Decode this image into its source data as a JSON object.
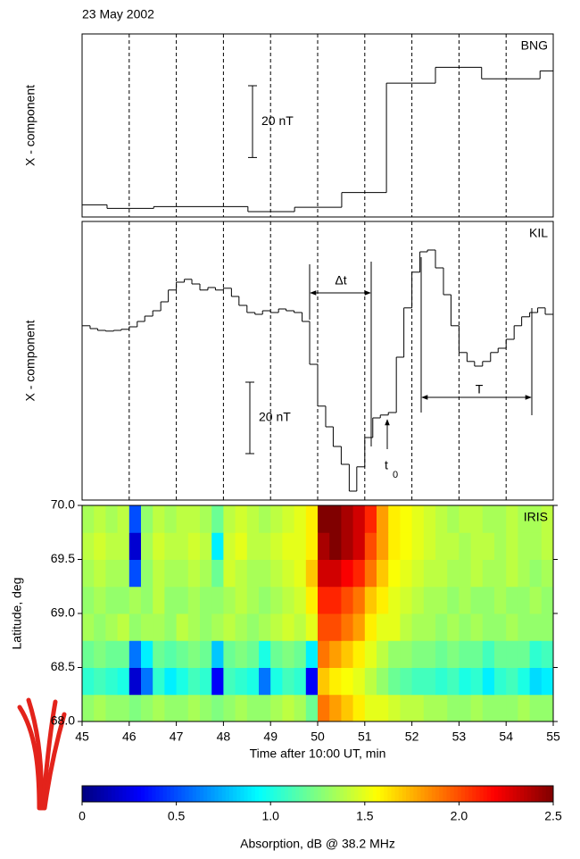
{
  "chart_data": [
    {
      "type": "step",
      "title": "23 May 2002",
      "label": "BNG",
      "ylabel": "X - component",
      "x": [
        45,
        45.53,
        46.52,
        48.52,
        49.51,
        50.51,
        51.46,
        52.5,
        53.48,
        54.72
      ],
      "values": [
        3.4,
        2.4,
        2.9,
        1.5,
        2.7,
        6.8,
        37.3,
        41.7,
        38.5,
        40.7
      ],
      "color": "#000000",
      "xlim": [
        45,
        55
      ],
      "ylim": [
        0,
        51
      ],
      "xticks": [
        45,
        46,
        47,
        48,
        49,
        50,
        51,
        52,
        53,
        54,
        55
      ],
      "grid": true,
      "scale_bar": {
        "value": 20,
        "label": "20 nT"
      }
    },
    {
      "type": "step",
      "label": "KIL",
      "ylabel": "X - component",
      "x": [
        45,
        45.17,
        45.33,
        45.5,
        45.67,
        45.83,
        46,
        46.17,
        46.33,
        46.5,
        46.67,
        46.83,
        47,
        47.17,
        47.33,
        47.5,
        47.67,
        47.83,
        48,
        48.17,
        48.33,
        48.5,
        48.67,
        48.83,
        49,
        49.17,
        49.33,
        49.5,
        49.67,
        49.83,
        50,
        50.17,
        50.33,
        50.5,
        50.67,
        50.83,
        51,
        51.17,
        51.33,
        51.5,
        51.67,
        51.83,
        52,
        52.17,
        52.33,
        52.5,
        52.67,
        52.83,
        53,
        53.17,
        53.33,
        53.5,
        53.67,
        53.83,
        54,
        54.17,
        54.33,
        54.5,
        54.67,
        54.83
      ],
      "values": [
        48.8,
        48,
        47.5,
        47.3,
        47.5,
        47.8,
        48.5,
        50,
        51.5,
        53,
        55.5,
        58.8,
        61,
        61.8,
        60.5,
        58.8,
        59.5,
        58.8,
        59.3,
        57,
        54.5,
        52.5,
        52,
        53,
        52.5,
        53.5,
        53,
        52.5,
        50,
        38,
        26.3,
        20.5,
        15,
        10,
        2.5,
        9.3,
        17.5,
        23,
        23.8,
        24.5,
        40,
        53.8,
        63.8,
        69.5,
        70,
        65,
        57.5,
        48.8,
        41.3,
        38.8,
        37.5,
        38.8,
        41.3,
        42.5,
        45,
        48.8,
        51.3,
        52.5,
        53.8,
        52
      ],
      "color": "#000000",
      "xlim": [
        45,
        55
      ],
      "ylim": [
        0,
        78
      ],
      "xticks": [
        45,
        46,
        47,
        48,
        49,
        50,
        51,
        52,
        53,
        54,
        55
      ],
      "grid": true,
      "scale_bar": {
        "value": 20,
        "label": "20 nT"
      },
      "annotations": [
        {
          "text": "Δt"
        },
        {
          "text": "T"
        },
        {
          "text": "t",
          "subscript": "0"
        }
      ]
    },
    {
      "type": "heatmap",
      "label": "IRIS",
      "ylabel": "Latitude, deg",
      "xlabel": "Time after 10:00 UT, min",
      "xbins": [
        45,
        45.25,
        45.5,
        45.75,
        46,
        46.25,
        46.5,
        46.75,
        47,
        47.25,
        47.5,
        47.75,
        48,
        48.25,
        48.5,
        48.75,
        49,
        49.25,
        49.5,
        49.75,
        50,
        50.25,
        50.5,
        50.75,
        51,
        51.25,
        51.5,
        51.75,
        52,
        52.25,
        52.5,
        52.75,
        53,
        53.25,
        53.5,
        53.75,
        54,
        54.25,
        54.5,
        54.75,
        55
      ],
      "ybins": [
        68,
        68.25,
        68.5,
        68.75,
        69,
        69.25,
        69.5,
        69.75,
        70
      ],
      "z": [
        [
          1.3,
          1.35,
          1.3,
          1.3,
          1.25,
          1.3,
          1.35,
          1.3,
          1.3,
          1.35,
          1.3,
          1.25,
          1.3,
          1.35,
          1.3,
          1.3,
          1.35,
          1.4,
          1.35,
          1.2,
          1.9,
          1.8,
          1.7,
          1.6,
          1.5,
          1.5,
          1.45,
          1.4,
          1.4,
          1.35,
          1.35,
          1.3,
          1.3,
          1.35,
          1.3,
          1.3,
          1.3,
          1.35,
          1.3,
          1.3
        ],
        [
          1.05,
          1.1,
          1.05,
          1.0,
          0.2,
          0.6,
          1.05,
          0.9,
          1.0,
          1.1,
          1.05,
          0.3,
          1.1,
          1.05,
          1.0,
          0.6,
          1.0,
          1.1,
          1.05,
          0.3,
          1.7,
          1.6,
          1.55,
          1.5,
          1.4,
          1.3,
          1.2,
          1.15,
          1.1,
          1.1,
          1.05,
          1.1,
          1.0,
          1.05,
          0.9,
          1.05,
          1.1,
          1.0,
          0.85,
          0.9
        ],
        [
          1.2,
          1.25,
          1.2,
          1.2,
          0.6,
          0.9,
          1.2,
          1.15,
          1.2,
          1.25,
          1.2,
          0.8,
          1.2,
          1.25,
          1.2,
          1.0,
          1.2,
          1.25,
          1.2,
          0.9,
          1.9,
          1.8,
          1.7,
          1.6,
          1.5,
          1.4,
          1.3,
          1.3,
          1.25,
          1.25,
          1.2,
          1.25,
          1.2,
          1.2,
          1.1,
          1.2,
          1.2,
          1.2,
          1.05,
          1.1
        ],
        [
          1.35,
          1.3,
          1.35,
          1.4,
          1.3,
          1.35,
          1.35,
          1.3,
          1.4,
          1.35,
          1.3,
          1.35,
          1.4,
          1.35,
          1.3,
          1.35,
          1.4,
          1.45,
          1.4,
          1.5,
          2.0,
          2.0,
          1.9,
          1.8,
          1.6,
          1.5,
          1.5,
          1.4,
          1.35,
          1.35,
          1.3,
          1.35,
          1.3,
          1.35,
          1.3,
          1.3,
          1.35,
          1.3,
          1.3,
          1.3
        ],
        [
          1.3,
          1.35,
          1.3,
          1.3,
          1.35,
          1.3,
          1.4,
          1.3,
          1.3,
          1.35,
          1.3,
          1.3,
          1.35,
          1.4,
          1.35,
          1.3,
          1.35,
          1.4,
          1.45,
          1.6,
          2.1,
          2.1,
          2.0,
          1.9,
          1.7,
          1.6,
          1.5,
          1.45,
          1.4,
          1.35,
          1.35,
          1.3,
          1.35,
          1.3,
          1.3,
          1.35,
          1.3,
          1.3,
          1.35,
          1.3
        ],
        [
          1.35,
          1.4,
          1.35,
          1.35,
          0.5,
          1.3,
          1.4,
          1.35,
          1.35,
          1.4,
          1.35,
          1.2,
          1.45,
          1.4,
          1.35,
          1.35,
          1.4,
          1.45,
          1.5,
          1.7,
          2.3,
          2.3,
          2.2,
          2.1,
          1.9,
          1.7,
          1.55,
          1.5,
          1.45,
          1.4,
          1.4,
          1.35,
          1.35,
          1.4,
          1.35,
          1.35,
          1.4,
          1.35,
          1.3,
          1.35
        ],
        [
          1.4,
          1.45,
          1.4,
          1.4,
          0.2,
          1.35,
          1.45,
          1.4,
          1.4,
          1.45,
          1.4,
          0.9,
          1.45,
          1.5,
          1.4,
          1.4,
          1.45,
          1.5,
          1.5,
          1.6,
          2.4,
          2.5,
          2.4,
          2.3,
          2.0,
          1.8,
          1.6,
          1.55,
          1.5,
          1.45,
          1.4,
          1.4,
          1.35,
          1.4,
          1.4,
          1.35,
          1.4,
          1.35,
          1.35,
          1.4
        ],
        [
          1.35,
          1.4,
          1.35,
          1.4,
          0.5,
          1.3,
          1.4,
          1.35,
          1.4,
          1.4,
          1.35,
          1.2,
          1.4,
          1.45,
          1.4,
          1.35,
          1.4,
          1.45,
          1.5,
          1.6,
          2.5,
          2.5,
          2.4,
          2.3,
          2.1,
          1.8,
          1.6,
          1.55,
          1.5,
          1.45,
          1.4,
          1.35,
          1.4,
          1.4,
          1.35,
          1.35,
          1.4,
          1.35,
          1.35,
          1.4
        ]
      ],
      "xlim": [
        45,
        55
      ],
      "ylim": [
        68,
        70
      ],
      "xticks": [
        45,
        46,
        47,
        48,
        49,
        50,
        51,
        52,
        53,
        54,
        55
      ],
      "yticks": [
        {
          "value": 68,
          "label": "68.0"
        },
        68.5,
        {
          "value": 69,
          "label": "69.0"
        },
        69.5,
        {
          "value": 70,
          "label": "70.0"
        }
      ],
      "colormap": "jet",
      "colorbar": {
        "label": "Absorption, dB @ 38.2 MHz",
        "clim": [
          0,
          2.5
        ],
        "ticks": [
          0,
          0.5,
          {
            "value": 1,
            "label": "1.0"
          },
          1.5,
          {
            "value": 2,
            "label": "2.0"
          },
          2.5
        ]
      }
    }
  ]
}
